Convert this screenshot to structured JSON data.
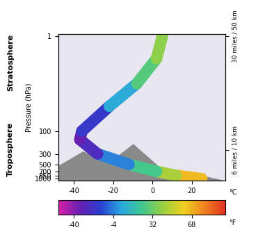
{
  "chart_data": {
    "type": "line",
    "x": [
      25,
      12,
      2,
      -12,
      -28,
      -37,
      -36,
      -22,
      -8,
      2,
      5
    ],
    "values": [
      1000,
      850,
      700,
      500,
      300,
      150,
      100,
      30,
      10,
      3,
      1
    ],
    "xlabel": "°C",
    "ylabel": "Pressure (hPa)",
    "xlim": [
      -48,
      37
    ],
    "xticks": [
      -40,
      -20,
      0,
      20
    ],
    "ylim": [
      1100,
      0.9
    ],
    "yticks": [
      1,
      100,
      300,
      500,
      700,
      850,
      1000
    ],
    "log": "y",
    "y2lim": [
      1100,
      0.9
    ],
    "y2ticks": [
      {
        "value": 1,
        "label": "30 miles / 50 km"
      },
      {
        "value": 250,
        "label": "6 miles / 10 km"
      }
    ],
    "annotations": [
      "Stratosphere",
      "Troposphere"
    ],
    "colorbar": {
      "lim": [
        -54.4,
        98.6
      ],
      "ticks": [
        -40,
        -4,
        32,
        68
      ],
      "label": "°F"
    }
  }
}
